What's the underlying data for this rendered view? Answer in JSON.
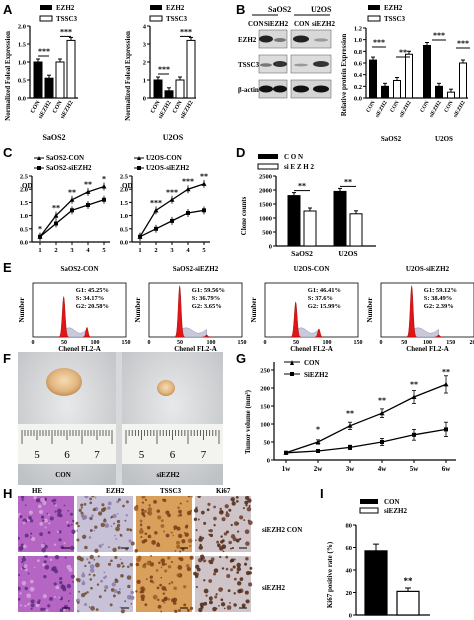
{
  "panels": {
    "a": "A",
    "b": "B",
    "c": "C",
    "d": "D",
    "e": "E",
    "f": "F",
    "g": "G",
    "h": "H",
    "i": "I"
  },
  "pa": {
    "ylabel": "Normalized Foleal Expression",
    "legend": [
      "EZH2",
      "TSSC3"
    ],
    "left": {
      "xlabel": "SaOS2",
      "ticks": [
        "0.0",
        "0.5",
        "1.0",
        "1.5",
        "2.0"
      ],
      "cats": [
        "CON",
        "siEZH2",
        "CON",
        "siEZH2"
      ],
      "sig": [
        "***",
        "***"
      ],
      "chart_data": {
        "type": "bar",
        "categories": [
          "CON",
          "siEZH2",
          "CON",
          "siEZH2"
        ],
        "values": [
          1.0,
          0.55,
          1.0,
          1.6
        ],
        "ylim": [
          0,
          2.0
        ]
      }
    },
    "right": {
      "xlabel": "U2OS",
      "ticks": [
        "0",
        "1",
        "2",
        "3",
        "4"
      ],
      "cats": [
        "CON",
        "siEZH2",
        "CON",
        "siEZH2"
      ],
      "sig": [
        "***",
        "***"
      ],
      "chart_data": {
        "type": "bar",
        "categories": [
          "CON",
          "siEZH2",
          "CON",
          "siEZH2"
        ],
        "values": [
          1.0,
          0.4,
          1.0,
          3.2
        ],
        "ylim": [
          0,
          4
        ]
      }
    }
  },
  "pb": {
    "blot_labels": [
      "SaOS2",
      "U2OS"
    ],
    "cols": [
      "CON",
      "SiEZH2",
      "CON",
      "siEZH2"
    ],
    "rows": [
      "EZH2",
      "TSSC3",
      "β-actin"
    ],
    "ylabel": "Relative protein Expression",
    "legend": [
      "EZH2",
      "TSSC3"
    ],
    "ticks": [
      "0.0",
      "0.2",
      "0.4",
      "0.6",
      "0.8",
      "1.0",
      "1.2"
    ],
    "cats": [
      "CON",
      "siEZH2",
      "CON",
      "siEZH2",
      "CON",
      "siEZH2",
      "CON",
      "siEZH2"
    ],
    "groups": [
      "SaOS2",
      "U2OS"
    ],
    "sig": [
      "***",
      "**",
      "***",
      "***"
    ],
    "chart_data": {
      "type": "bar",
      "categories": [
        "CON",
        "siEZH2",
        "CON",
        "siEZH2",
        "CON",
        "siEZH2",
        "CON",
        "siEZH2"
      ],
      "values": [
        0.65,
        0.2,
        0.3,
        0.75,
        0.9,
        0.2,
        0.1,
        0.6
      ],
      "ylim": [
        0,
        1.2
      ]
    }
  },
  "pc": {
    "ylabel": "OD",
    "left": {
      "legend": [
        "SaOS2-CON",
        "SaOS2-siEZH2"
      ],
      "ticks": [
        "0.0",
        "0.5",
        "1.0",
        "1.5",
        "2.0",
        "2.5"
      ],
      "xticks": [
        "1",
        "2",
        "3",
        "4",
        "5"
      ],
      "sig": [
        "*",
        "**",
        "**",
        "**",
        "*"
      ],
      "chart_data": {
        "type": "line",
        "x": [
          1,
          2,
          3,
          4,
          5
        ],
        "series": [
          {
            "name": "SaOS2-CON",
            "values": [
              0.2,
              1.0,
              1.6,
              1.9,
              2.1
            ]
          },
          {
            "name": "SaOS2-siEZH2",
            "values": [
              0.2,
              0.7,
              1.2,
              1.4,
              1.6
            ]
          }
        ],
        "ylim": [
          0,
          2.5
        ]
      }
    },
    "right": {
      "legend": [
        "U2OS-CON",
        "U2OS-siEZH2"
      ],
      "ticks": [
        "0.0",
        "0.5",
        "1.0",
        "1.5",
        "2.0",
        "2.5"
      ],
      "xticks": [
        "1",
        "2",
        "3",
        "4",
        "5"
      ],
      "sig": [
        "***",
        "***",
        "***",
        "**"
      ],
      "chart_data": {
        "type": "line",
        "x": [
          1,
          2,
          3,
          4,
          5
        ],
        "series": [
          {
            "name": "U2OS-CON",
            "values": [
              0.2,
              1.2,
              1.6,
              2.0,
              2.2
            ]
          },
          {
            "name": "U2OS-siEZH2",
            "values": [
              0.2,
              0.5,
              0.8,
              1.1,
              1.2
            ]
          }
        ],
        "ylim": [
          0,
          2.5
        ]
      }
    }
  },
  "pd": {
    "ylabel": "Clone counts",
    "legend": [
      "C O N",
      "si E Z H 2"
    ],
    "ticks": [
      "0",
      "500",
      "1000",
      "1500",
      "2000",
      "2500"
    ],
    "groups": [
      "SaOS2",
      "U2OS"
    ],
    "sig": [
      "**",
      "**"
    ],
    "chart_data": {
      "type": "bar",
      "categories": [
        "SaOS2",
        "U2OS"
      ],
      "series": [
        {
          "name": "C O N",
          "values": [
            1800,
            1950
          ]
        },
        {
          "name": "si E Z H 2",
          "values": [
            1250,
            1150
          ]
        }
      ],
      "ylim": [
        0,
        2500
      ]
    }
  },
  "pe": {
    "xlabel": "Chenel FL2-A",
    "ylabel": "Number",
    "xticks": [
      "0",
      "50",
      "100",
      "150"
    ],
    "xticks_b": [
      "0",
      "50",
      "100",
      "150",
      "200"
    ],
    "items": [
      {
        "title": "SaOS2-CON",
        "g1": "G1: 45.25%",
        "s": "S: 34.17%",
        "g2": "G2: 20.58%"
      },
      {
        "title": "SaOS2-siEZH2",
        "g1": "G1: 59.56%",
        "s": "S: 36.79%",
        "g2": "G2: 3.65%"
      },
      {
        "title": "U2OS-CON",
        "g1": "G1: 46.41%",
        "s": "S: 37.6%",
        "g2": "G2: 15.99%"
      },
      {
        "title": "U2OS-siEZH2",
        "g1": "G1: 59.12%",
        "s": "S: 38.49%",
        "g2": "G2: 2.39%"
      }
    ]
  },
  "pf": {
    "ruler": [
      "5",
      "6",
      "7",
      "5",
      "6",
      "7"
    ],
    "labels": [
      "CON",
      "siEZH2"
    ]
  },
  "pg": {
    "ylabel": "Tumor volume (mm³)",
    "legend": [
      "CON",
      "SiEZH2"
    ],
    "ticks": [
      "0",
      "50",
      "100",
      "150",
      "200",
      "250"
    ],
    "xticks": [
      "1w",
      "2w",
      "3w",
      "4w",
      "5w",
      "6w"
    ],
    "sig": [
      "*",
      "**",
      "**",
      "**",
      "**"
    ],
    "chart_data": {
      "type": "line",
      "x": [
        "1w",
        "2w",
        "3w",
        "4w",
        "5w",
        "6w"
      ],
      "series": [
        {
          "name": "CON",
          "values": [
            20,
            50,
            95,
            130,
            175,
            210
          ]
        },
        {
          "name": "SiEZH2",
          "values": [
            20,
            25,
            35,
            50,
            70,
            85
          ]
        }
      ],
      "ylim": [
        0,
        250
      ]
    }
  },
  "ph": {
    "cols": [
      "HE",
      "EZH2",
      "TSSC3",
      "Ki67"
    ],
    "rows": [
      "siEZH2 CON",
      "siEZH2"
    ]
  },
  "pi": {
    "ylabel": "Ki67 positive rate (%)",
    "legend": [
      "CON",
      "siEZH2"
    ],
    "ticks": [
      "0",
      "20",
      "40",
      "60",
      "80"
    ],
    "sig": "**",
    "chart_data": {
      "type": "bar",
      "categories": [
        "CON",
        "siEZH2"
      ],
      "values": [
        57,
        21
      ],
      "ylim": [
        0,
        80
      ]
    }
  },
  "colors": {
    "black": "#000000",
    "red": "#e01515",
    "white": "#ffffff"
  }
}
